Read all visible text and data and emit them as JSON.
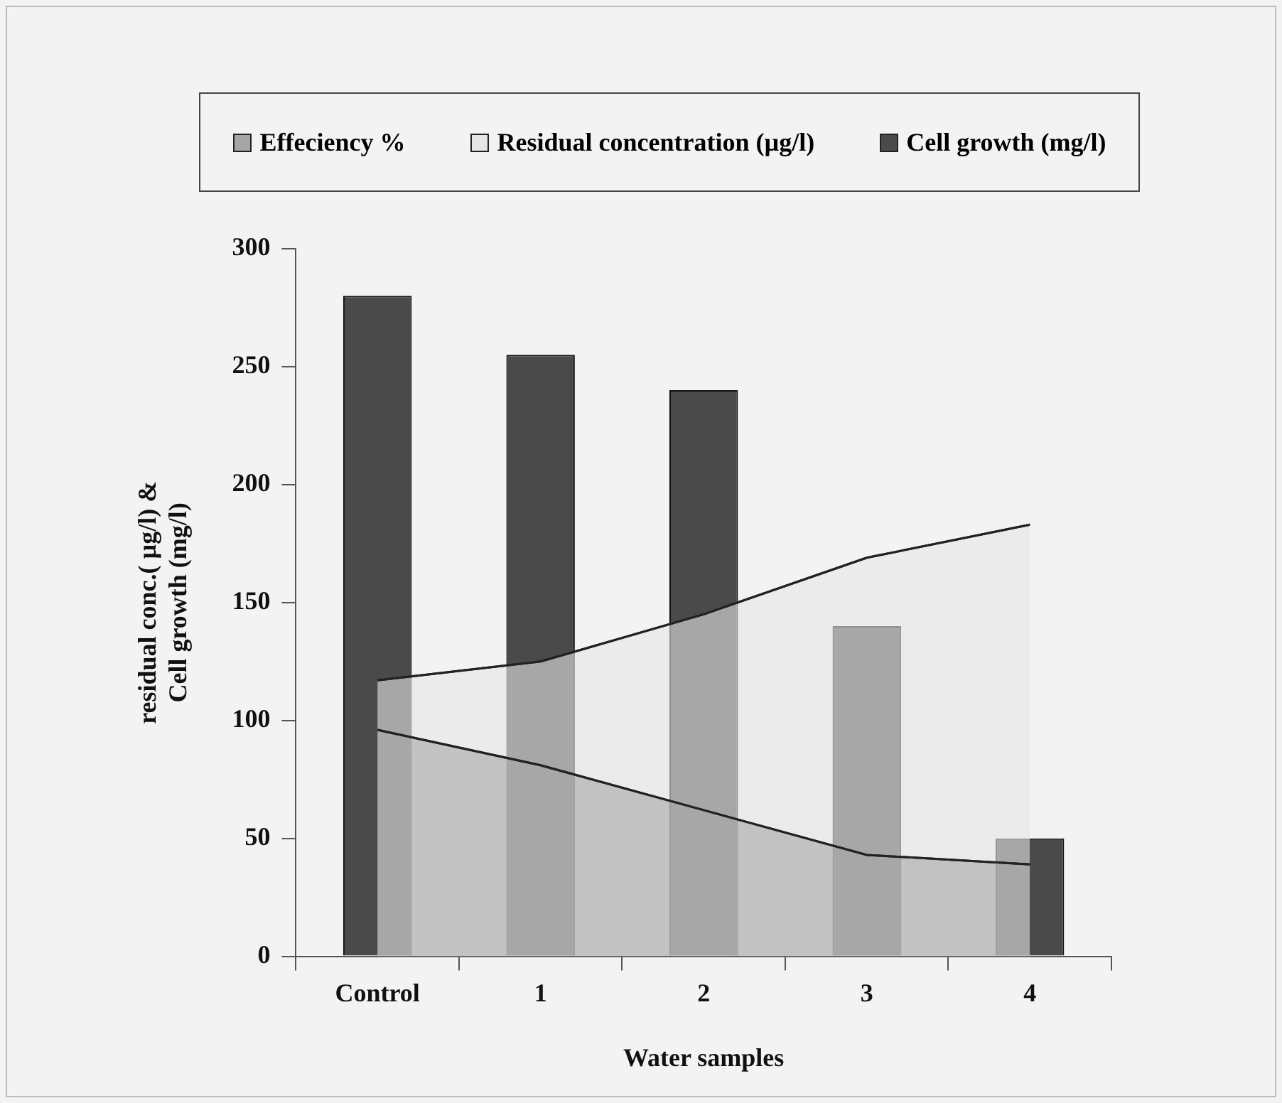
{
  "chart_data": {
    "type": "bar",
    "xlabel": "Water samples",
    "ylabel": "residual conc.( µg/l) &\nCell growth (mg/l)",
    "categories": [
      "Control",
      "1",
      "2",
      "3",
      "4"
    ],
    "series": [
      {
        "name": "Effeciency %",
        "type": "area",
        "color": "#a6a6a6",
        "values": [
          96,
          81,
          62,
          43,
          39
        ]
      },
      {
        "name": "Residual concentration (µg/l)",
        "type": "area",
        "color": "#e6e6e6",
        "values": [
          117,
          125,
          145,
          169,
          183
        ]
      },
      {
        "name": "Cell growth (mg/l)",
        "color": "#4a4a4a",
        "values": [
          280,
          255,
          240,
          140,
          50
        ]
      }
    ],
    "ylim": [
      0,
      300
    ],
    "yticks": [
      0,
      50,
      100,
      150,
      200,
      250,
      300
    ],
    "grid": false,
    "legend": "top"
  }
}
